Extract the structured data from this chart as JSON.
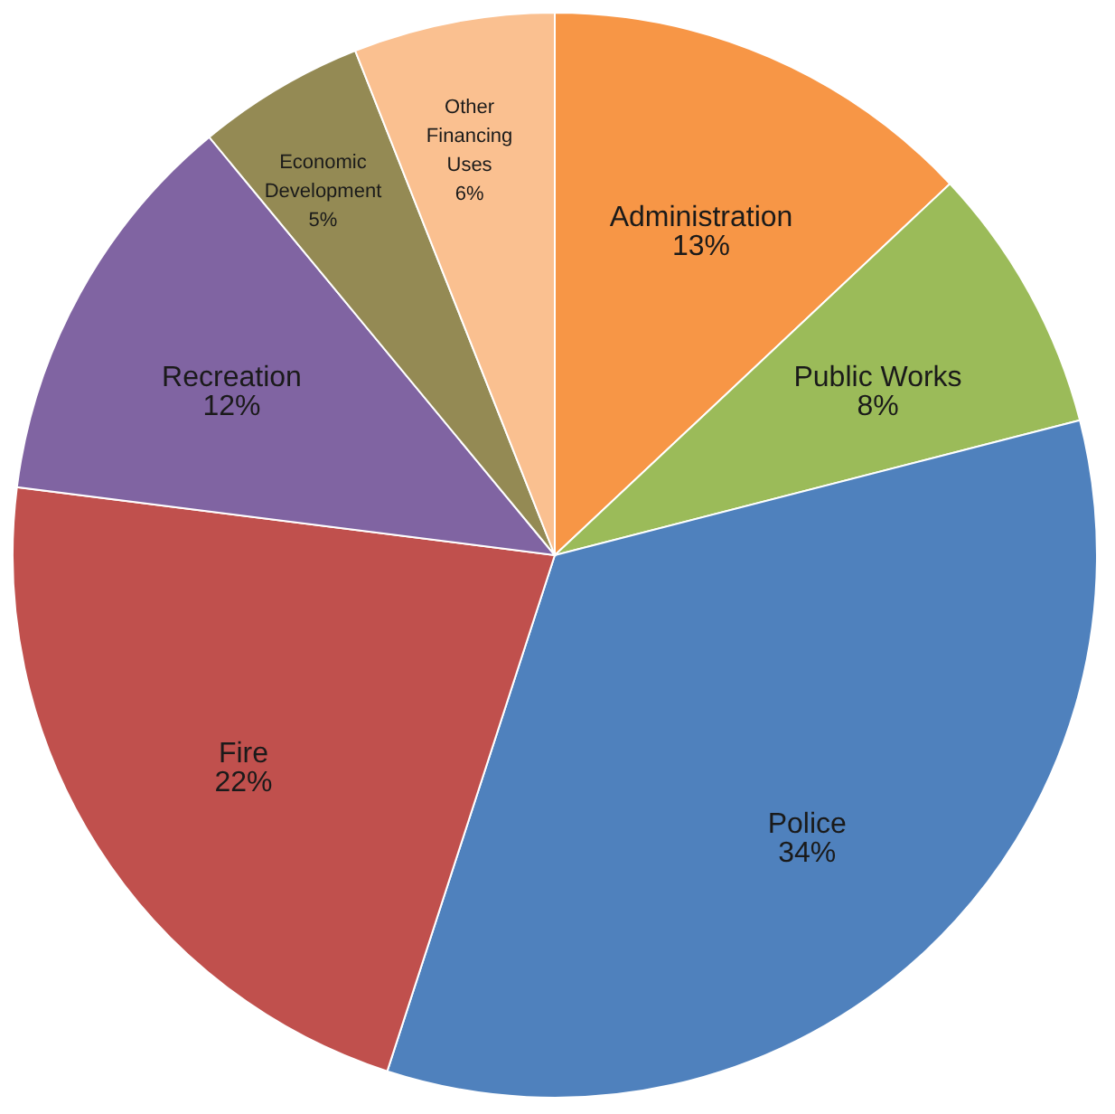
{
  "chart_data": {
    "type": "pie",
    "categories": [
      "Administration",
      "Public Works",
      "Police",
      "Fire",
      "Recreation",
      "Economic Development",
      "Other Financing Uses"
    ],
    "values": [
      13,
      8,
      34,
      22,
      12,
      5,
      6
    ],
    "value_labels": [
      "13%",
      "8%",
      "34%",
      "22%",
      "12%",
      "5%",
      "6%"
    ],
    "colors": [
      "#f79646",
      "#9bbb59",
      "#4f81bd",
      "#c0504d",
      "#8064a2",
      "#948a54",
      "#fac090"
    ],
    "legend": false
  }
}
